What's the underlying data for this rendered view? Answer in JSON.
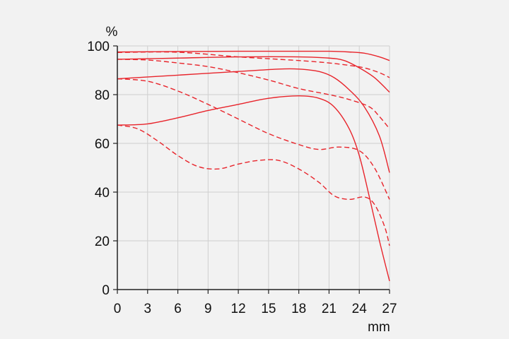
{
  "chart_data": {
    "type": "line",
    "title": "",
    "xlabel": "mm",
    "ylabel": "%",
    "xlim": [
      0,
      27
    ],
    "ylim": [
      0,
      100
    ],
    "xticks": [
      "0",
      "3",
      "6",
      "9",
      "12",
      "15",
      "18",
      "21",
      "24",
      "27"
    ],
    "yticks": [
      "0",
      "20",
      "40",
      "60",
      "80",
      "100"
    ],
    "grid": true,
    "legend": "none",
    "line_color": "#e8242b",
    "grid_color": "#cfcfcf",
    "axis_color": "#222222",
    "series": [
      {
        "style": "solid",
        "x": [
          0,
          6,
          12,
          18,
          21,
          23,
          24.5,
          26,
          27
        ],
        "y": [
          97.5,
          97.7,
          97.8,
          97.8,
          97.8,
          97.5,
          97,
          95.5,
          94
        ]
      },
      {
        "style": "dashed",
        "x": [
          0,
          6,
          12,
          18,
          21,
          23,
          24.5,
          26,
          27
        ],
        "y": [
          97.3,
          97.4,
          95.5,
          94,
          93,
          92,
          91,
          89,
          87
        ]
      },
      {
        "style": "solid",
        "x": [
          0,
          6,
          12,
          18,
          21,
          22.5,
          24,
          25.5,
          27
        ],
        "y": [
          94.5,
          95,
          95.5,
          95.5,
          95,
          94,
          91,
          87,
          81
        ]
      },
      {
        "style": "dashed",
        "x": [
          0,
          3,
          6,
          9,
          12,
          15,
          18,
          21,
          23,
          25,
          26,
          27
        ],
        "y": [
          94.5,
          94.2,
          93,
          91.5,
          89,
          86,
          82.5,
          80,
          78,
          75,
          71,
          66
        ]
      },
      {
        "style": "solid",
        "x": [
          0,
          6,
          12,
          16,
          18,
          20,
          21.5,
          23,
          24.5,
          26,
          27
        ],
        "y": [
          86.5,
          88,
          89.5,
          90.5,
          90.5,
          89.5,
          87,
          82,
          75,
          63,
          48
        ]
      },
      {
        "style": "dashed",
        "x": [
          0,
          3,
          6,
          9,
          12,
          15,
          18,
          20,
          22,
          24,
          25.5,
          27
        ],
        "y": [
          86.5,
          85.5,
          81.5,
          76,
          70,
          64,
          59.5,
          57.5,
          58.5,
          57,
          50,
          37
        ]
      },
      {
        "style": "solid",
        "x": [
          0,
          3,
          6,
          9,
          12,
          15,
          18,
          20,
          21.5,
          23,
          24,
          25,
          26,
          27
        ],
        "y": [
          67.5,
          68,
          70.5,
          73.5,
          76,
          78.5,
          79.5,
          78.5,
          75,
          66,
          55,
          38,
          20,
          3.5
        ]
      },
      {
        "style": "dashed",
        "x": [
          0,
          2,
          4,
          6,
          8,
          10,
          12,
          14,
          16,
          18,
          20,
          21.5,
          23,
          24.5,
          25.5,
          26.5,
          27
        ],
        "y": [
          67.5,
          66,
          61,
          55,
          50.5,
          49.5,
          51.5,
          53,
          53,
          49.5,
          44,
          38.5,
          37,
          38,
          35,
          26,
          18
        ]
      }
    ]
  }
}
